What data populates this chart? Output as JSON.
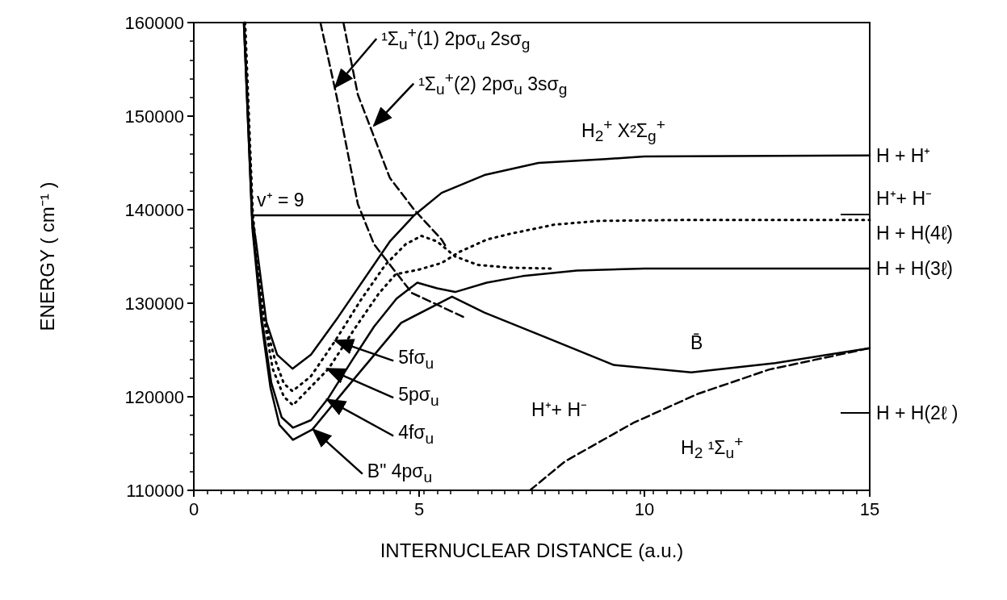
{
  "chart_data": {
    "type": "line",
    "xlabel": "INTERNUCLEAR DISTANCE (a.u.)",
    "ylabel": "ENERGY ( cm⁻¹ )",
    "xlim": [
      0,
      15
    ],
    "xticks": [
      0,
      5,
      10,
      15
    ],
    "ylim": [
      110000,
      160000
    ],
    "yticks": [
      110000,
      120000,
      130000,
      140000,
      150000,
      160000
    ],
    "grid": false,
    "marker": "none",
    "series": [
      {
        "color": "#000000",
        "line_style": "solid",
        "x": [
          1.11,
          1.29,
          1.38,
          1.61,
          1.85,
          2.19,
          2.6,
          3.2,
          4.35,
          4.89,
          5.5,
          6.45,
          7.65,
          9.14,
          10,
          15
        ],
        "values": [
          160000,
          139400,
          136600,
          128000,
          124500,
          123000,
          124500,
          128500,
          136600,
          139400,
          141800,
          143700,
          145000,
          145400,
          145700,
          145800
        ]
      },
      {
        "color": "#000000",
        "line_style": "dotted",
        "x": [
          1.14,
          1.32,
          1.55,
          1.8,
          2.0,
          2.19,
          2.6,
          3.14,
          3.7,
          4.25,
          4.7,
          5.05,
          5.4,
          5.8,
          6.3,
          7,
          8
        ],
        "values": [
          160000,
          138000,
          128500,
          124000,
          121400,
          120600,
          122200,
          126000,
          130300,
          134100,
          136300,
          137200,
          136600,
          135000,
          134100,
          133800,
          133700
        ]
      },
      {
        "color": "#000000",
        "line_style": "dotted",
        "x": [
          1.13,
          1.3,
          1.5,
          1.75,
          2.0,
          2.2,
          2.99,
          3.6,
          4.1,
          4.48,
          5.0,
          5.5,
          5.9,
          6.5,
          7.0,
          8.0,
          9,
          11,
          15
        ],
        "values": [
          160000,
          140000,
          130000,
          123000,
          120000,
          119100,
          123000,
          127500,
          131000,
          133100,
          133600,
          134300,
          135500,
          136800,
          137400,
          138400,
          138800,
          138900,
          138900
        ]
      },
      {
        "color": "#000000",
        "line_style": "solid",
        "x": [
          1.12,
          1.31,
          1.52,
          1.72,
          1.95,
          2.2,
          2.6,
          2.99,
          3.5,
          4.0,
          4.5,
          4.96,
          5.4,
          5.8,
          6.5,
          7.3,
          8.5,
          10,
          15
        ],
        "values": [
          160000,
          138000,
          128000,
          121500,
          117800,
          116700,
          117500,
          119900,
          123800,
          127500,
          130500,
          132200,
          131600,
          131200,
          132200,
          132900,
          133500,
          133700,
          133700
        ]
      },
      {
        "color": "#000000",
        "line_style": "solid",
        "x": [
          1.11,
          1.3,
          1.5,
          1.7,
          1.9,
          2.2,
          2.63,
          3.4,
          4.6,
          5.73,
          6.45,
          7.89,
          9.32,
          11.04,
          12.9,
          15
        ],
        "values": [
          160000,
          138000,
          128000,
          121000,
          117000,
          115400,
          116500,
          121000,
          127900,
          130700,
          129000,
          126200,
          123400,
          122600,
          123600,
          125200
        ]
      },
      {
        "color": "#000000",
        "line_style": "solid",
        "x": [
          1.29,
          4.89
        ],
        "values": [
          139400,
          139400
        ]
      },
      {
        "color": "#000000",
        "line_style": "dashed",
        "x": [
          7.46,
          8.24,
          9.75,
          11.18,
          12.76,
          15
        ],
        "values": [
          110000,
          113100,
          117200,
          120300,
          122900,
          125200
        ]
      },
      {
        "color": "#000000",
        "line_style": "dashed",
        "x": [
          2.81,
          3.17,
          3.64,
          4.0,
          4.84,
          6.04
        ],
        "values": [
          160000,
          152100,
          140600,
          136300,
          131100,
          128400
        ]
      },
      {
        "color": "#000000",
        "line_style": "dashed",
        "x": [
          3.32,
          3.64,
          4.35,
          4.89,
          5.5,
          5.6
        ],
        "values": [
          160000,
          152300,
          143400,
          140000,
          136800,
          136000
        ]
      }
    ],
    "annotations": [
      {
        "text": "¹Σ$_{u}$$^{+}$(1) 2pσ$_{u}$ 2sσ$_{g}$",
        "x": 3.14,
        "y": 153100
      },
      {
        "text": "¹Σ$_{u}$$^{+}$(2) 2pσ$_{u}$ 3sσ$_{g}$",
        "x": 4.0,
        "y": 149000
      },
      {
        "text": "5fσ$_{u}$",
        "x": 3.14,
        "y": 126000
      },
      {
        "text": "5pσ$_{u}$",
        "x": 2.96,
        "y": 123000
      },
      {
        "text": "4fσ$_{u}$",
        "x": 2.96,
        "y": 119700
      },
      {
        "text": "B\" 4pσ$_{u}$",
        "x": 2.65,
        "y": 116500
      },
      {
        "text": "v⁺ = 9",
        "x": 1.4,
        "y": 141000
      },
      "H$_{2}$$^{+}$  X²Σ$_{g}$$^{+}$",
      "B̄",
      "H⁺+ H⁻",
      "H$_{2}$  ¹Σ$_{u}$$^{+}$",
      {
        "text": "H + H⁺",
        "x": 15,
        "y": 145800
      },
      "H⁺+ H⁻",
      {
        "text": "H + H(4ℓ)",
        "x": 15,
        "y": 138900
      },
      {
        "text": "H + H(3ℓ)",
        "x": 15,
        "y": 133700
      },
      "H + H(2ℓ )"
    ]
  }
}
